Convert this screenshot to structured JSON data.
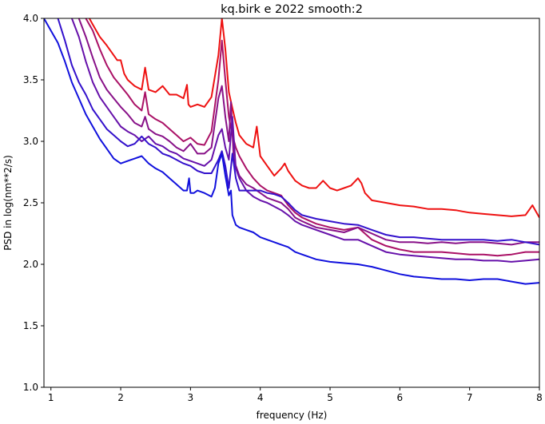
{
  "chart_data": {
    "type": "line",
    "title": "kq.birk e 2022 smooth:2",
    "xlabel": "frequency (Hz)",
    "ylabel": "PSD in log(nm**2/s)",
    "xlim": [
      0.9,
      8.0
    ],
    "ylim": [
      1.0,
      4.0
    ],
    "xticks": [
      1,
      2,
      3,
      4,
      5,
      6,
      7,
      8
    ],
    "yticks": [
      1.0,
      1.5,
      2.0,
      2.5,
      3.0,
      3.5,
      4.0
    ],
    "xtick_labels": [
      "1",
      "2",
      "3",
      "4",
      "5",
      "6",
      "7",
      "8"
    ],
    "ytick_labels": [
      "1.0",
      "1.5",
      "2.0",
      "2.5",
      "3.0",
      "3.5",
      "4.0"
    ],
    "grid": false,
    "legend": "none",
    "series": [
      {
        "color": "#ee1111",
        "x": [
          1.55,
          1.6,
          1.7,
          1.8,
          1.9,
          1.95,
          2.0,
          2.05,
          2.1,
          2.2,
          2.3,
          2.35,
          2.4,
          2.5,
          2.6,
          2.7,
          2.8,
          2.9,
          2.95,
          2.97,
          3.0,
          3.1,
          3.2,
          3.3,
          3.4,
          3.45,
          3.5,
          3.55,
          3.6,
          3.65,
          3.7,
          3.8,
          3.9,
          3.95,
          4.0,
          4.1,
          4.2,
          4.3,
          4.35,
          4.4,
          4.5,
          4.6,
          4.7,
          4.8,
          4.9,
          5.0,
          5.1,
          5.2,
          5.3,
          5.4,
          5.45,
          5.5,
          5.6,
          5.8,
          6.0,
          6.2,
          6.4,
          6.6,
          6.8,
          6.9,
          7.0,
          7.2,
          7.4,
          7.6,
          7.8,
          7.9,
          8.0
        ],
        "y": [
          4.0,
          3.95,
          3.85,
          3.78,
          3.7,
          3.66,
          3.66,
          3.55,
          3.5,
          3.45,
          3.42,
          3.6,
          3.42,
          3.4,
          3.45,
          3.38,
          3.38,
          3.35,
          3.46,
          3.3,
          3.28,
          3.3,
          3.28,
          3.36,
          3.7,
          4.0,
          3.75,
          3.4,
          3.27,
          3.15,
          3.05,
          2.98,
          2.95,
          3.12,
          2.88,
          2.8,
          2.72,
          2.78,
          2.82,
          2.76,
          2.68,
          2.64,
          2.62,
          2.62,
          2.68,
          2.62,
          2.6,
          2.62,
          2.64,
          2.7,
          2.66,
          2.58,
          2.52,
          2.5,
          2.48,
          2.47,
          2.45,
          2.45,
          2.44,
          2.43,
          2.42,
          2.41,
          2.4,
          2.39,
          2.4,
          2.48,
          2.38
        ]
      },
      {
        "color": "#aa1166",
        "x": [
          1.5,
          1.6,
          1.7,
          1.8,
          1.9,
          2.0,
          2.1,
          2.2,
          2.3,
          2.35,
          2.4,
          2.5,
          2.6,
          2.7,
          2.8,
          2.9,
          3.0,
          3.1,
          3.2,
          3.3,
          3.4,
          3.45,
          3.5,
          3.55,
          3.6,
          3.65,
          3.7,
          3.8,
          3.9,
          4.0,
          4.1,
          4.2,
          4.3,
          4.4,
          4.5,
          4.6,
          4.8,
          5.0,
          5.2,
          5.4,
          5.6,
          5.8,
          6.0,
          6.2,
          6.4,
          6.6,
          6.8,
          7.0,
          7.2,
          7.4,
          7.6,
          7.8,
          8.0
        ],
        "y": [
          4.0,
          3.9,
          3.75,
          3.62,
          3.52,
          3.45,
          3.38,
          3.3,
          3.25,
          3.4,
          3.22,
          3.18,
          3.15,
          3.1,
          3.05,
          3.0,
          3.03,
          2.98,
          2.97,
          3.08,
          3.5,
          3.82,
          3.5,
          3.2,
          3.05,
          2.95,
          2.88,
          2.78,
          2.7,
          2.64,
          2.6,
          2.58,
          2.56,
          2.48,
          2.42,
          2.38,
          2.33,
          2.3,
          2.28,
          2.3,
          2.2,
          2.15,
          2.12,
          2.1,
          2.1,
          2.1,
          2.09,
          2.08,
          2.08,
          2.07,
          2.08,
          2.1,
          2.1
        ]
      },
      {
        "color": "#881188",
        "x": [
          1.4,
          1.5,
          1.6,
          1.7,
          1.8,
          1.9,
          2.0,
          2.1,
          2.2,
          2.3,
          2.35,
          2.4,
          2.5,
          2.6,
          2.7,
          2.8,
          2.9,
          3.0,
          3.1,
          3.2,
          3.3,
          3.4,
          3.45,
          3.5,
          3.55,
          3.58,
          3.62,
          3.7,
          3.8,
          3.9,
          4.0,
          4.1,
          4.2,
          4.3,
          4.4,
          4.5,
          4.6,
          4.8,
          5.0,
          5.2,
          5.4,
          5.6,
          5.8,
          6.0,
          6.2,
          6.4,
          6.6,
          6.8,
          7.0,
          7.2,
          7.4,
          7.6,
          7.8,
          8.0
        ],
        "y": [
          4.0,
          3.85,
          3.68,
          3.52,
          3.42,
          3.35,
          3.28,
          3.22,
          3.15,
          3.12,
          3.2,
          3.1,
          3.06,
          3.04,
          3.0,
          2.95,
          2.92,
          2.98,
          2.9,
          2.9,
          2.95,
          3.35,
          3.45,
          3.2,
          3.0,
          3.32,
          2.85,
          2.72,
          2.65,
          2.62,
          2.58,
          2.54,
          2.52,
          2.5,
          2.45,
          2.38,
          2.35,
          2.3,
          2.28,
          2.26,
          2.3,
          2.25,
          2.2,
          2.18,
          2.18,
          2.17,
          2.18,
          2.17,
          2.18,
          2.18,
          2.17,
          2.16,
          2.18,
          2.18
        ]
      },
      {
        "color": "#6611aa",
        "x": [
          1.3,
          1.4,
          1.5,
          1.6,
          1.7,
          1.8,
          1.9,
          2.0,
          2.1,
          2.2,
          2.3,
          2.4,
          2.5,
          2.6,
          2.7,
          2.8,
          2.9,
          3.0,
          3.1,
          3.2,
          3.3,
          3.4,
          3.45,
          3.5,
          3.55,
          3.6,
          3.65,
          3.7,
          3.8,
          3.9,
          4.0,
          4.1,
          4.2,
          4.3,
          4.4,
          4.5,
          4.6,
          4.8,
          5.0,
          5.2,
          5.4,
          5.6,
          5.8,
          6.0,
          6.2,
          6.4,
          6.6,
          6.8,
          7.0,
          7.2,
          7.4,
          7.6,
          7.8,
          8.0
        ],
        "y": [
          4.0,
          3.85,
          3.65,
          3.48,
          3.36,
          3.28,
          3.2,
          3.12,
          3.08,
          3.05,
          3.0,
          3.04,
          2.98,
          2.96,
          2.92,
          2.9,
          2.86,
          2.84,
          2.82,
          2.8,
          2.85,
          3.05,
          3.1,
          2.95,
          2.85,
          3.2,
          2.78,
          2.7,
          2.6,
          2.55,
          2.52,
          2.5,
          2.47,
          2.44,
          2.4,
          2.35,
          2.32,
          2.28,
          2.24,
          2.2,
          2.2,
          2.15,
          2.1,
          2.08,
          2.07,
          2.06,
          2.05,
          2.04,
          2.04,
          2.03,
          2.03,
          2.02,
          2.03,
          2.04
        ]
      },
      {
        "color": "#3311cc",
        "x": [
          1.1,
          1.2,
          1.3,
          1.4,
          1.5,
          1.6,
          1.7,
          1.8,
          1.9,
          2.0,
          2.1,
          2.2,
          2.3,
          2.4,
          2.5,
          2.6,
          2.7,
          2.8,
          2.9,
          3.0,
          3.1,
          3.2,
          3.3,
          3.4,
          3.45,
          3.5,
          3.55,
          3.6,
          3.65,
          3.7,
          3.8,
          3.9,
          4.0,
          4.1,
          4.2,
          4.3,
          4.4,
          4.5,
          4.6,
          4.8,
          5.0,
          5.2,
          5.4,
          5.6,
          5.8,
          6.0,
          6.2,
          6.4,
          6.6,
          6.8,
          7.0,
          7.2,
          7.4,
          7.6,
          7.8,
          8.0
        ],
        "y": [
          4.0,
          3.82,
          3.62,
          3.48,
          3.38,
          3.26,
          3.18,
          3.1,
          3.05,
          3.0,
          2.96,
          2.98,
          3.04,
          2.98,
          2.95,
          2.9,
          2.88,
          2.85,
          2.82,
          2.8,
          2.76,
          2.74,
          2.74,
          2.85,
          2.92,
          2.8,
          2.62,
          2.9,
          2.7,
          2.6,
          2.6,
          2.6,
          2.6,
          2.58,
          2.57,
          2.55,
          2.5,
          2.44,
          2.4,
          2.37,
          2.35,
          2.33,
          2.32,
          2.28,
          2.24,
          2.22,
          2.22,
          2.21,
          2.2,
          2.2,
          2.2,
          2.2,
          2.19,
          2.2,
          2.18,
          2.16
        ]
      },
      {
        "color": "#1111dd",
        "x": [
          0.9,
          1.0,
          1.1,
          1.2,
          1.3,
          1.4,
          1.5,
          1.6,
          1.7,
          1.8,
          1.9,
          2.0,
          2.1,
          2.2,
          2.3,
          2.4,
          2.5,
          2.6,
          2.7,
          2.8,
          2.9,
          2.95,
          2.98,
          3.0,
          3.05,
          3.1,
          3.2,
          3.3,
          3.35,
          3.4,
          3.45,
          3.5,
          3.55,
          3.58,
          3.6,
          3.65,
          3.7,
          3.8,
          3.9,
          4.0,
          4.1,
          4.2,
          4.3,
          4.4,
          4.5,
          4.6,
          4.8,
          5.0,
          5.2,
          5.4,
          5.6,
          5.8,
          6.0,
          6.2,
          6.4,
          6.6,
          6.8,
          7.0,
          7.2,
          7.4,
          7.6,
          7.8,
          8.0
        ],
        "y": [
          4.0,
          3.9,
          3.8,
          3.65,
          3.48,
          3.35,
          3.22,
          3.12,
          3.02,
          2.94,
          2.86,
          2.82,
          2.84,
          2.86,
          2.88,
          2.82,
          2.78,
          2.75,
          2.7,
          2.65,
          2.6,
          2.6,
          2.7,
          2.58,
          2.58,
          2.6,
          2.58,
          2.55,
          2.62,
          2.82,
          2.9,
          2.72,
          2.56,
          2.6,
          2.4,
          2.32,
          2.3,
          2.28,
          2.26,
          2.22,
          2.2,
          2.18,
          2.16,
          2.14,
          2.1,
          2.08,
          2.04,
          2.02,
          2.01,
          2.0,
          1.98,
          1.95,
          1.92,
          1.9,
          1.89,
          1.88,
          1.88,
          1.87,
          1.88,
          1.88,
          1.86,
          1.84,
          1.85
        ]
      }
    ]
  }
}
